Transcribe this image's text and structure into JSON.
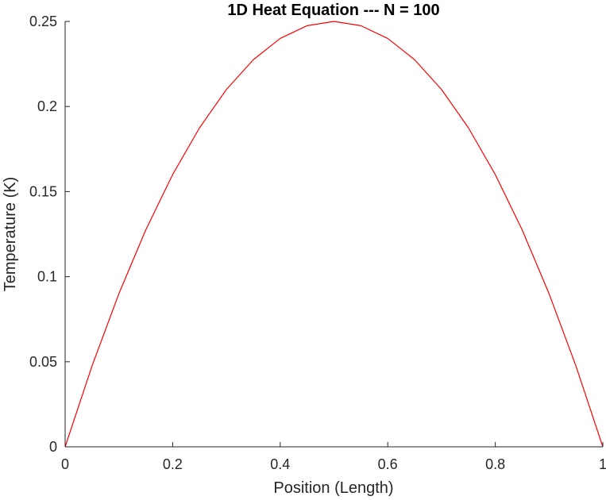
{
  "chart_data": {
    "type": "line",
    "title": "1D Heat Equation --- N = 100",
    "xlabel": "Position (Length)",
    "ylabel": "Temperature (K)",
    "xlim": [
      0,
      1
    ],
    "ylim": [
      0,
      0.25
    ],
    "xticks": [
      0,
      0.2,
      0.4,
      0.6,
      0.8,
      1
    ],
    "xtick_labels": [
      "0",
      "0.2",
      "0.4",
      "0.6",
      "0.8",
      "1"
    ],
    "yticks": [
      0,
      0.05,
      0.1,
      0.15,
      0.2,
      0.25
    ],
    "ytick_labels": [
      "0",
      "0.05",
      "0.1",
      "0.15",
      "0.2",
      "0.25"
    ],
    "grid": false,
    "series": [
      {
        "color": "#ff0000",
        "x": [
          0,
          0.05,
          0.1,
          0.15,
          0.2,
          0.25,
          0.3,
          0.35,
          0.4,
          0.45,
          0.5,
          0.55,
          0.6,
          0.65,
          0.7,
          0.75,
          0.8,
          0.85,
          0.9,
          0.95,
          1
        ],
        "y": [
          0,
          0.0475,
          0.09,
          0.1275,
          0.16,
          0.1875,
          0.21,
          0.2275,
          0.24,
          0.2475,
          0.25,
          0.2475,
          0.24,
          0.2275,
          0.21,
          0.1875,
          0.16,
          0.1275,
          0.09,
          0.0475,
          0
        ]
      }
    ]
  }
}
